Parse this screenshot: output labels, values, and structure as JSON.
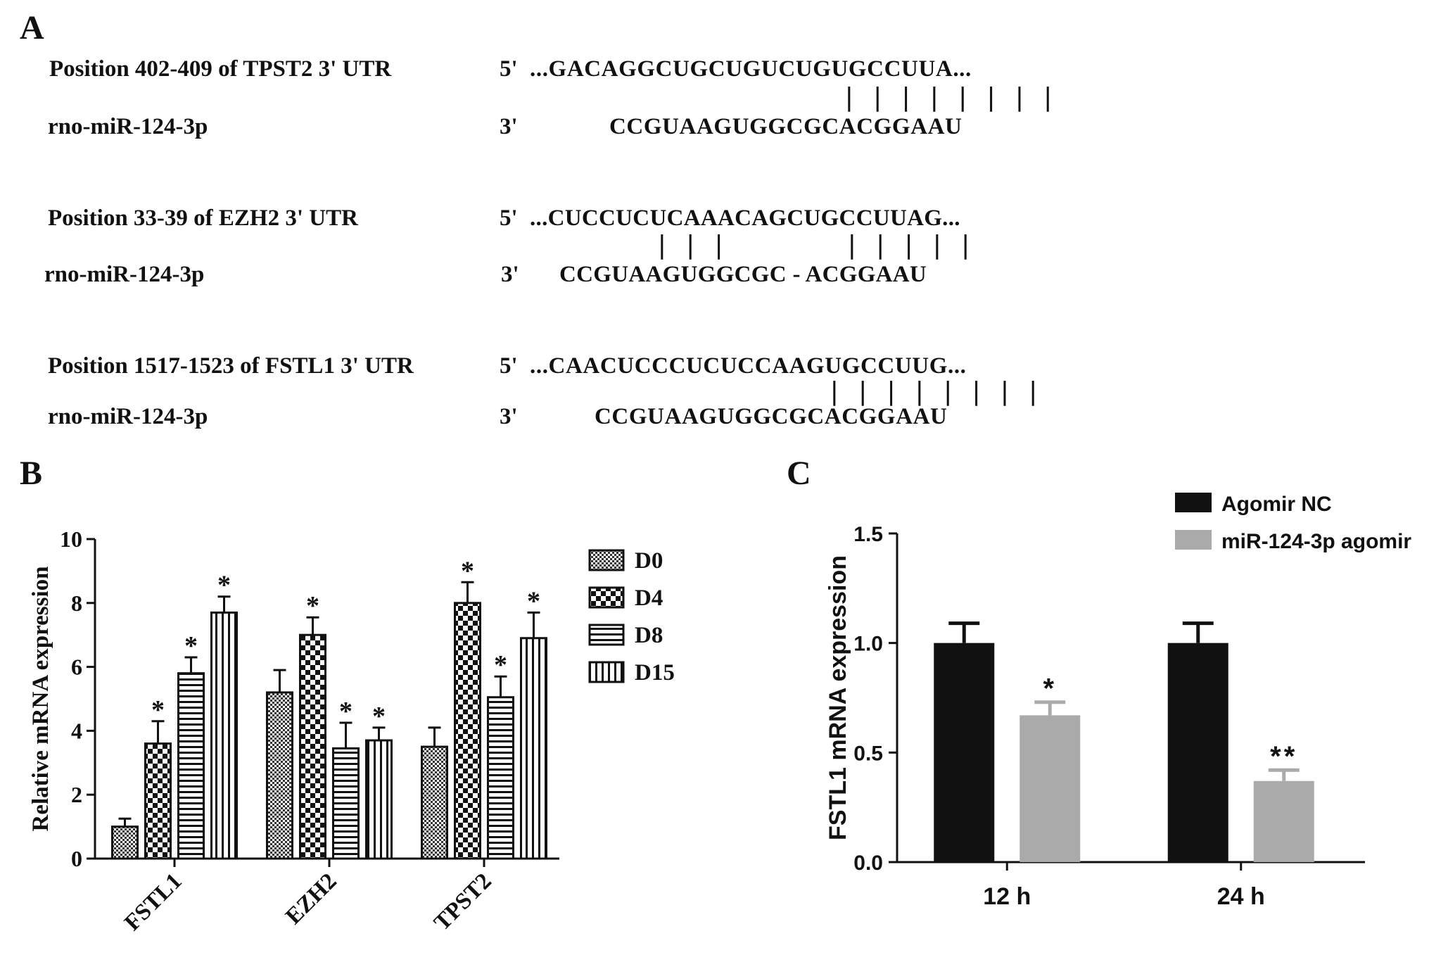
{
  "panels": {
    "a": "A",
    "b": "B",
    "c": "C"
  },
  "alignments": [
    {
      "site_label": "Position 402-409 of TPST2 3' UTR",
      "mirna_label": "rno-miR-124-3p",
      "five_prime": "5'",
      "three_prime": "3'",
      "target_seq": "...GACAGGCUGCUGUCUGUGCCUUA...",
      "mirna_seq": "CCGUAAGUGGCGCACGGAAU",
      "pairing": "| | | | | | | |"
    },
    {
      "site_label": "Position 33-39 of EZH2 3' UTR",
      "mirna_label": "rno-miR-124-3p",
      "five_prime": "5'",
      "three_prime": "3'",
      "target_seq": "...CUCCUCUCAAACAGCUGCCUUAG...",
      "mirna_seq": "CCGUAAGUGGCGC - ACGGAAU",
      "pairing_left": "| | |",
      "pairing_right": "| | | | |"
    },
    {
      "site_label": "Position 1517-1523 of FSTL1 3' UTR",
      "mirna_label": "rno-miR-124-3p",
      "five_prime": "5'",
      "three_prime": "3'",
      "target_seq": "...CAACUCCCUCUCCAAGUGCCUUG...",
      "mirna_seq": "CCGUAAGUGGCGCACGGAAU",
      "pairing": "| | | | | | | |"
    }
  ],
  "chart_data": [
    {
      "type": "bar",
      "panel": "B",
      "ylabel": "Relative mRNA expression",
      "xlabel": "",
      "ylim": [
        0,
        10
      ],
      "yticks": [
        "0",
        "2",
        "4",
        "6",
        "8",
        "10"
      ],
      "categories": [
        "FSTL1",
        "EZH2",
        "TPST2"
      ],
      "series": [
        {
          "name": "D0",
          "values": [
            1.0,
            5.2,
            3.5
          ],
          "errors": [
            0.25,
            0.7,
            0.6
          ],
          "sig": [
            "",
            "",
            ""
          ]
        },
        {
          "name": "D4",
          "values": [
            3.6,
            7.0,
            8.0
          ],
          "errors": [
            0.7,
            0.55,
            0.65
          ],
          "sig": [
            "*",
            "*",
            "*"
          ]
        },
        {
          "name": "D8",
          "values": [
            5.8,
            3.45,
            5.05
          ],
          "errors": [
            0.5,
            0.8,
            0.65
          ],
          "sig": [
            "*",
            "*",
            "*"
          ]
        },
        {
          "name": "D15",
          "values": [
            7.7,
            3.7,
            6.9
          ],
          "errors": [
            0.5,
            0.4,
            0.8
          ],
          "sig": [
            "*",
            "*",
            "*"
          ]
        }
      ],
      "legend_position": "right"
    },
    {
      "type": "bar",
      "panel": "C",
      "ylabel": "FSTL1 mRNA expression",
      "xlabel": "",
      "ylim": [
        0,
        1.5
      ],
      "yticks": [
        "0.0",
        "0.5",
        "1.0",
        "1.5"
      ],
      "categories": [
        "12 h",
        "24 h"
      ],
      "series": [
        {
          "name": "Agomir NC",
          "color": "#111111",
          "values": [
            1.0,
            1.0
          ],
          "errors": [
            0.09,
            0.09
          ],
          "sig": [
            "",
            ""
          ]
        },
        {
          "name": "miR-124-3p agomir",
          "color": "#aaaaaa",
          "values": [
            0.67,
            0.37
          ],
          "errors": [
            0.06,
            0.05
          ],
          "sig": [
            "*",
            "**"
          ]
        }
      ],
      "legend_position": "top-right"
    }
  ]
}
